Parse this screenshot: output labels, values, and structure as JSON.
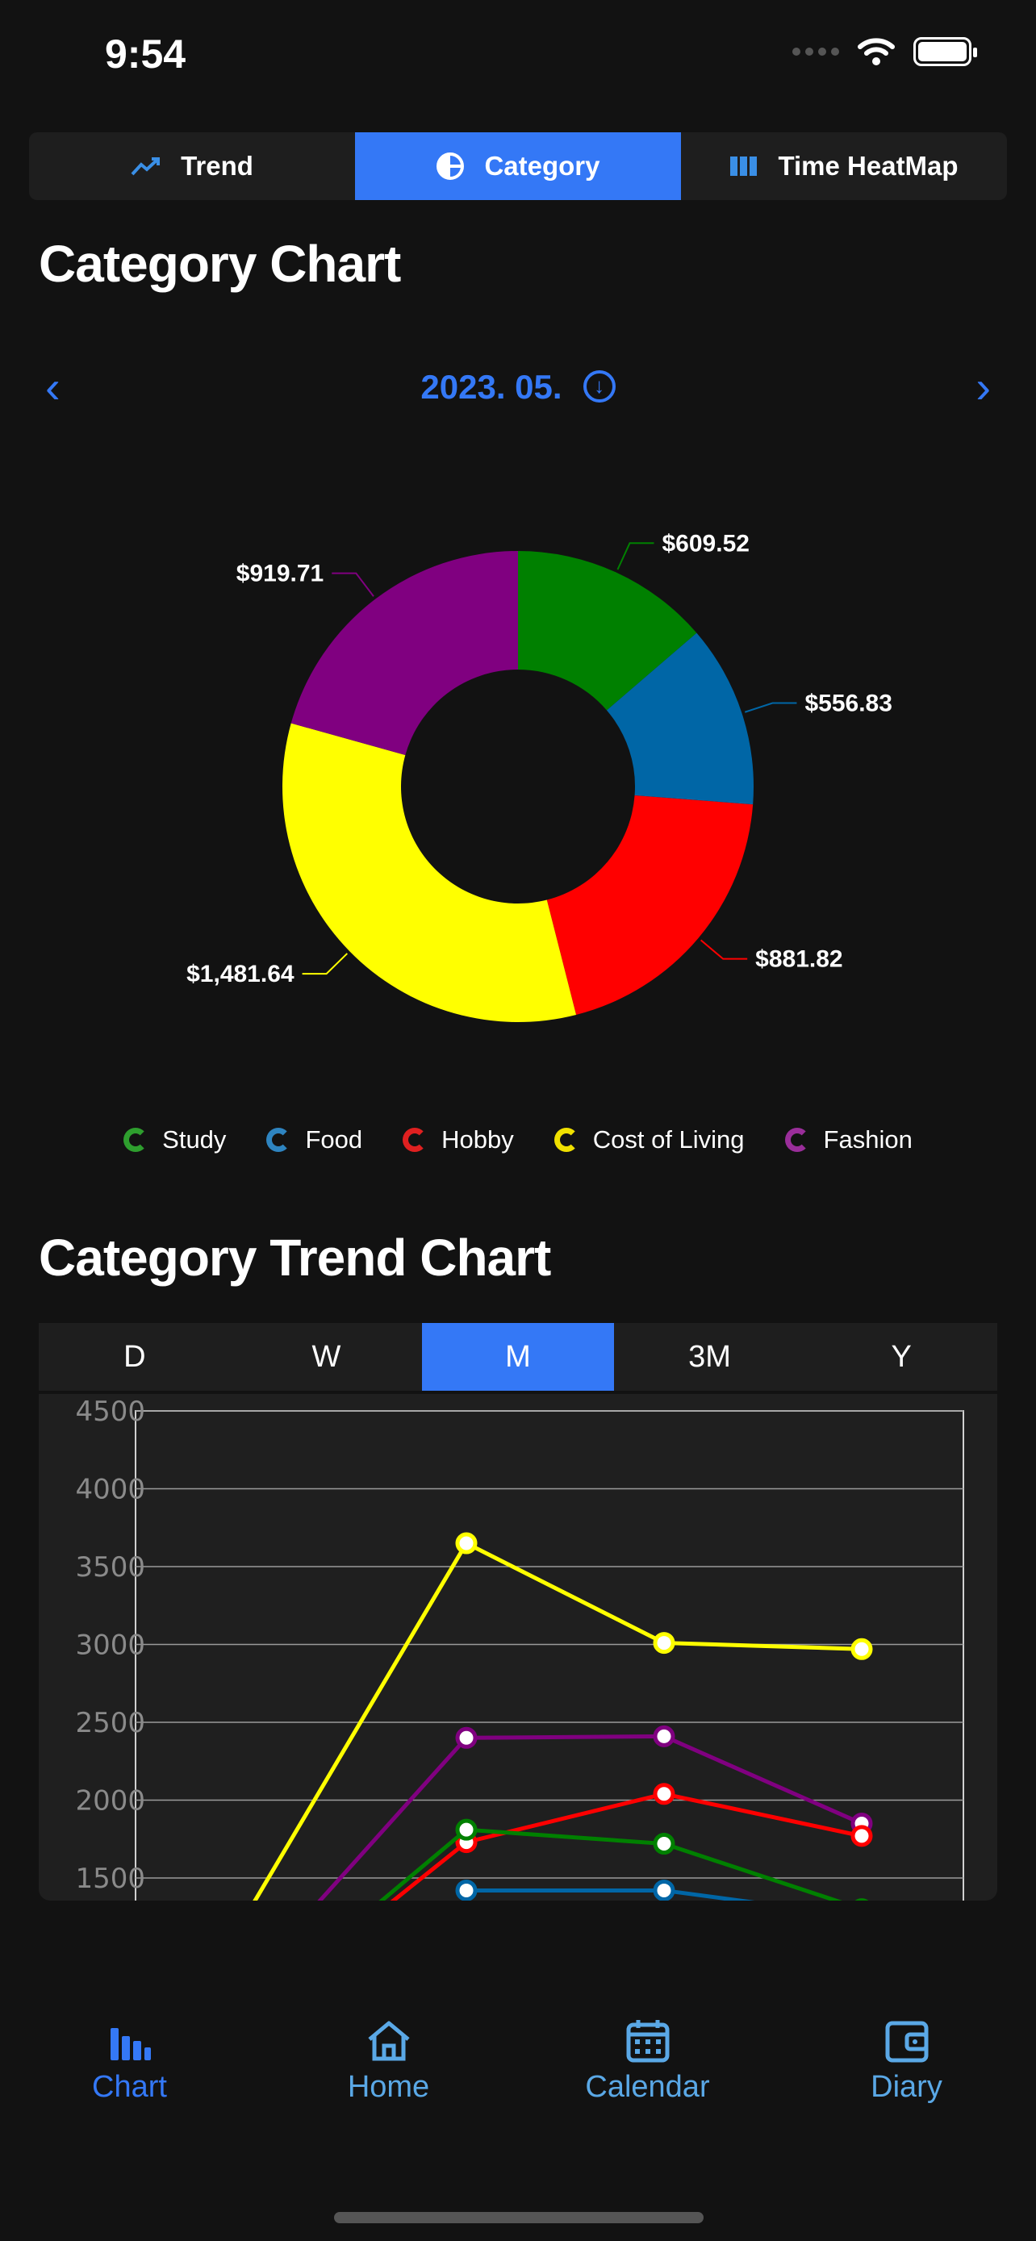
{
  "status_bar": {
    "time": "9:54"
  },
  "top_tabs": [
    {
      "label": "Trend",
      "icon": "trend-icon",
      "active": false
    },
    {
      "label": "Category",
      "icon": "pie-icon",
      "active": true
    },
    {
      "label": "Time HeatMap",
      "icon": "heatmap-icon",
      "active": false
    }
  ],
  "category_chart": {
    "title": "Category Chart",
    "month": "2023. 05.",
    "slices": [
      {
        "category": "Study",
        "label": "$609.52",
        "color": "#008000"
      },
      {
        "category": "Food",
        "label": "$556.83",
        "color": "#0066a6"
      },
      {
        "category": "Hobby",
        "label": "$881.82",
        "color": "#ff0000"
      },
      {
        "category": "Cost of Living",
        "label": "$1,481.64",
        "color": "#ffff00"
      },
      {
        "category": "Fashion",
        "label": "$919.71",
        "color": "#800080"
      }
    ],
    "legend": [
      {
        "label": "Study",
        "color": "#2e9e2e"
      },
      {
        "label": "Food",
        "color": "#2e84c0"
      },
      {
        "label": "Hobby",
        "color": "#e02020"
      },
      {
        "label": "Cost of Living",
        "color": "#f0e000"
      },
      {
        "label": "Fashion",
        "color": "#9a2e9a"
      }
    ]
  },
  "trend_chart": {
    "title": "Category Trend Chart",
    "ranges": [
      {
        "label": "D",
        "active": false
      },
      {
        "label": "W",
        "active": false
      },
      {
        "label": "M",
        "active": true
      },
      {
        "label": "3M",
        "active": false
      },
      {
        "label": "Y",
        "active": false
      }
    ]
  },
  "chart_data": [
    {
      "type": "pie",
      "title": "Category Chart",
      "categories": [
        "Study",
        "Food",
        "Hobby",
        "Cost of Living",
        "Fashion"
      ],
      "values": [
        609.52,
        556.83,
        881.82,
        1481.64,
        919.71
      ],
      "labels": [
        "$609.52",
        "$556.83",
        "$881.82",
        "$1,481.64",
        "$919.71"
      ],
      "colors": [
        "#008000",
        "#0066a6",
        "#ff0000",
        "#ffff00",
        "#800080"
      ],
      "legend": "bottom"
    },
    {
      "type": "line",
      "title": "Category Trend Chart",
      "ylim": [
        1500,
        4500
      ],
      "yticks": [
        4500,
        4000,
        3500,
        3000,
        2500,
        2000,
        1500
      ],
      "grid": true,
      "series": [
        {
          "name": "Cost of Living",
          "color": "#ffff00",
          "points": [
            [
              -1.7,
              0
            ],
            [
              0,
              3650
            ],
            [
              1,
              3010
            ],
            [
              2,
              2970
            ]
          ]
        },
        {
          "name": "Fashion",
          "color": "#800080",
          "points": [
            [
              -1.7,
              0
            ],
            [
              0,
              2400
            ],
            [
              1,
              2410
            ],
            [
              2,
              1850
            ]
          ]
        },
        {
          "name": "Hobby",
          "color": "#ff0000",
          "points": [
            [
              -1.7,
              0
            ],
            [
              0,
              1730
            ],
            [
              1,
              2040
            ],
            [
              2,
              1770
            ]
          ]
        },
        {
          "name": "Study",
          "color": "#008000",
          "points": [
            [
              -1.7,
              0
            ],
            [
              0,
              1810
            ],
            [
              1,
              1720
            ],
            [
              2,
              1300
            ]
          ]
        },
        {
          "name": "Food",
          "color": "#0066a6",
          "points": [
            [
              0,
              1420
            ],
            [
              1,
              1420
            ],
            [
              2,
              1250
            ]
          ]
        }
      ]
    }
  ],
  "tab_bar": [
    {
      "label": "Chart",
      "icon": "chart-icon",
      "active": true
    },
    {
      "label": "Home",
      "icon": "home-icon",
      "active": false
    },
    {
      "label": "Calendar",
      "icon": "calendar-icon",
      "active": false
    },
    {
      "label": "Diary",
      "icon": "wallet-icon",
      "active": false
    }
  ]
}
